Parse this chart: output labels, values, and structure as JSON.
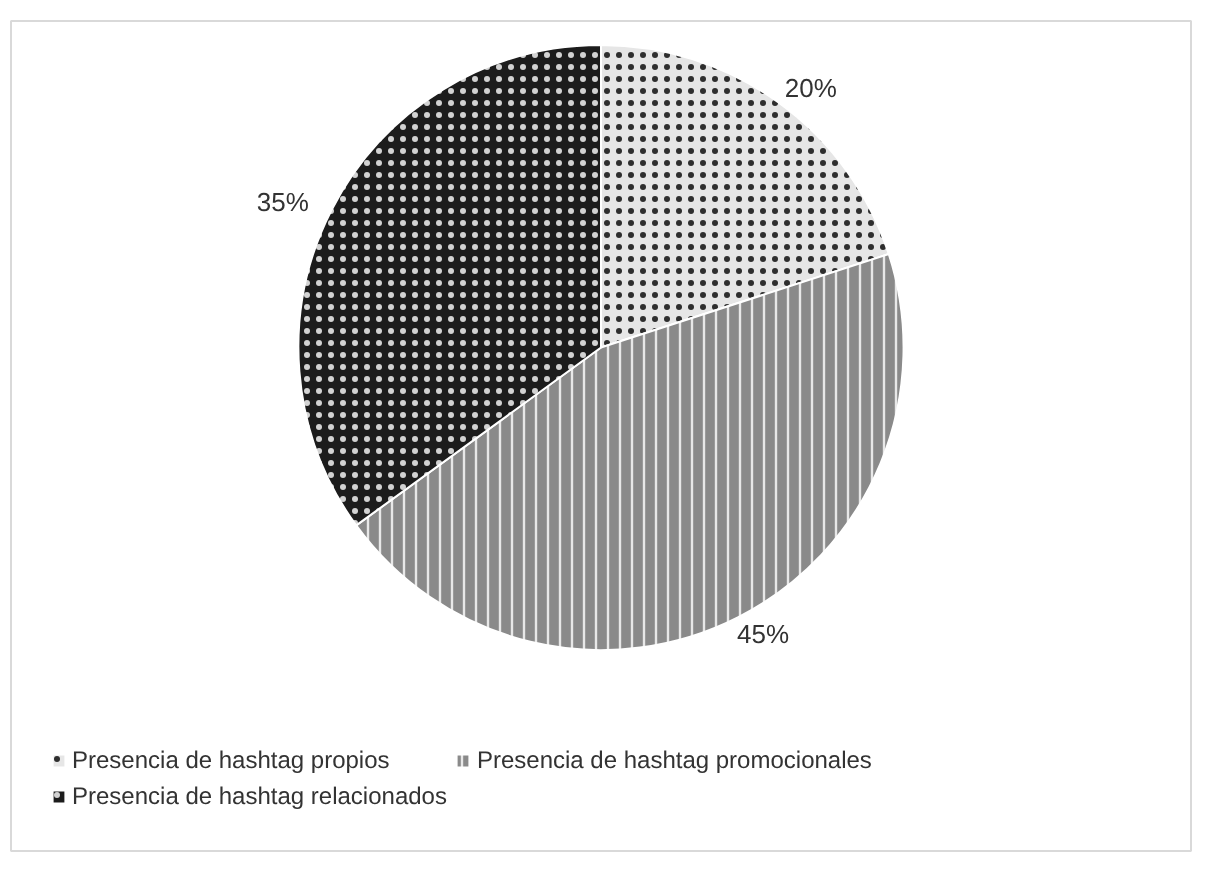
{
  "chart_data": {
    "type": "pie",
    "categories": [
      "Presencia de hashtag propios",
      "Presencia de hashtag promocionales",
      "Presencia de hashtag relacionados"
    ],
    "values": [
      20,
      45,
      35
    ],
    "colors": [
      "#e6e6e6",
      "#8a8a8a",
      "#1c1c1c"
    ],
    "value_labels": [
      "20%",
      "45%",
      "35%"
    ],
    "legend": "bottom"
  }
}
